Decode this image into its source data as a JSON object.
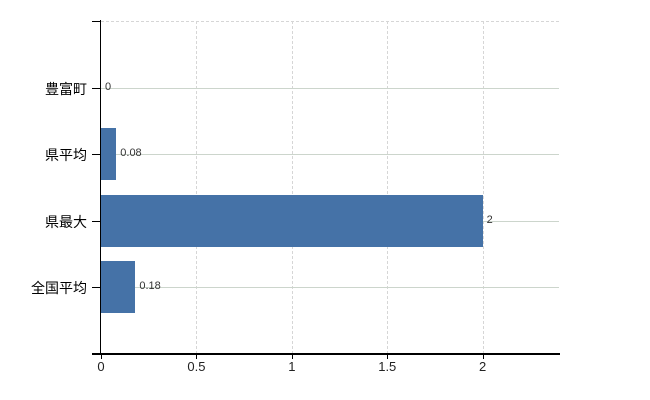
{
  "chart_data": {
    "type": "bar",
    "orientation": "horizontal",
    "title": "",
    "xlabel": "",
    "ylabel": "",
    "categories": [
      "豊富町",
      "県平均",
      "県最大",
      "全国平均"
    ],
    "values": [
      0,
      0.08,
      2,
      0.18
    ],
    "data_labels": [
      "0",
      "0.08",
      "2",
      "0.18"
    ],
    "x_ticks": [
      0,
      0.5,
      1,
      1.5,
      2
    ],
    "x_tick_labels": [
      "0",
      "0.5",
      "1",
      "1.5",
      "2"
    ],
    "xlim": [
      0,
      2.4
    ],
    "legend_position": "none",
    "grid": {
      "vertical_style": "dashed",
      "horizontal_style": "solid",
      "top_border_style": "dashed"
    }
  },
  "colors": {
    "background": "#ffffff",
    "bar": "#4572a7",
    "axis_line": "#000000",
    "grid_vertical": "#d6d6d6",
    "grid_horizontal": "#ccd5cc",
    "category_label_text": "#000000",
    "tick_label_text": "#222222",
    "data_label_text": "#333333"
  }
}
